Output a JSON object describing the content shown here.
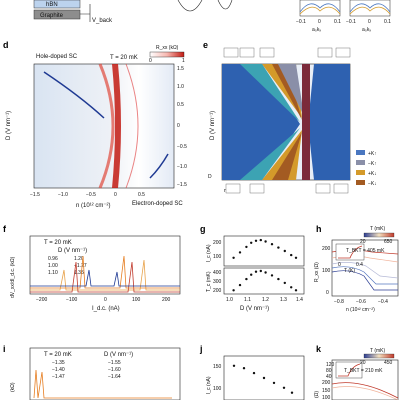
{
  "top": {
    "stack_labels": [
      "hBN",
      "Graphite"
    ],
    "vback_label": "V_back",
    "right_plots": {
      "x_ticks": [
        "−0.1",
        "0",
        "0.1"
      ],
      "x_label": "a₀kₓ"
    }
  },
  "panel_labels": {
    "d": "d",
    "e": "e",
    "f": "f",
    "g": "g",
    "h": "h",
    "i": "i",
    "j": "j",
    "k": "k"
  },
  "d": {
    "annotation_hole": "Hole-doped SC",
    "annotation_electron": "Electron-doped SC",
    "temperature": "T = 20 mK",
    "colorbar_label": "R_xx (kΩ)",
    "colorbar_ticks": [
      "0",
      "1"
    ],
    "x_label": "n (10¹² cm⁻²)",
    "x_ticks": [
      "−1.5",
      "−1.0",
      "−0.5",
      "0",
      "0.5"
    ],
    "y_label": "D (V nm⁻¹)",
    "y_ticks": [
      "1.5",
      "1.0",
      "0.5",
      "0",
      "−0.5",
      "−1.0",
      "−1.5"
    ]
  },
  "e": {
    "y_label": "D (V nm⁻¹)",
    "x_label": "n",
    "axis_D": "D",
    "legend": [
      {
        "label": "+K↑",
        "color": "#4a77c0"
      },
      {
        "label": "−K↑",
        "color": "#8a8fa8"
      },
      {
        "label": "+K↓",
        "color": "#d49a2a"
      },
      {
        "label": "−K↓",
        "color": "#a35b22"
      }
    ]
  },
  "f": {
    "temperature": "T = 20 mK",
    "legend_title": "D (V nm⁻¹)",
    "legend": [
      {
        "label": "0.96",
        "color": "#e8a24a"
      },
      {
        "label": "1.00",
        "color": "#c0392b"
      },
      {
        "label": "1.10",
        "color": "#e67e22"
      },
      {
        "label": "1.20",
        "color": "#1f3a93"
      },
      {
        "label": "−1.27",
        "color": "#7f8fa6"
      },
      {
        "label": "1.35",
        "color": "#f5c28b"
      }
    ],
    "y_label": "dV_xx/dI_d.c. (kΩ)",
    "x_label": "I_d.c. (nA)",
    "x_ticks": [
      "−200",
      "−100",
      "0",
      "100",
      "200"
    ]
  },
  "g": {
    "top_label": "I_c (nA)",
    "bottom_label": "T_c (mK)",
    "top_ticks": [
      "200",
      "100"
    ],
    "bottom_ticks": [
      "400",
      "300",
      "200"
    ],
    "x_label": "D (V nm⁻¹)",
    "x_ticks": [
      "1.0",
      "1.1",
      "1.2",
      "1.3",
      "1.4"
    ]
  },
  "h": {
    "y_label": "R_xx (Ω)",
    "y_ticks": [
      "200",
      "100",
      "0"
    ],
    "x_label": "n (10¹² cm⁻²)",
    "x_ticks": [
      "−0.8",
      "−0.6",
      "−0.4"
    ],
    "colorbar_title": "T (mK)",
    "colorbar_min": "20",
    "colorbar_max": "650",
    "inset_annot": "T_BKT = 405 mK",
    "inset_x_ticks": [
      "0",
      "0.4"
    ],
    "inset_x_label": "T (K)"
  },
  "i": {
    "temperature": "T = 20 mK",
    "legend_title": "D (V nm⁻¹)",
    "legend": [
      {
        "label": "−1.35",
        "color": "#e67e22"
      },
      {
        "label": "−1.55",
        "color": "#1f3a93"
      },
      {
        "label": "−1.40",
        "color": "#c0392b"
      },
      {
        "label": "−1.60",
        "color": "#7f8fa6"
      },
      {
        "label": "−1.47",
        "color": "#e8a24a"
      },
      {
        "label": "−1.64",
        "color": "#5b6c8a"
      }
    ],
    "y_label": "(kΩ)"
  },
  "j": {
    "y_label": "I_c (nA)",
    "y_ticks": [
      "150",
      "100"
    ]
  },
  "k": {
    "colorbar_title": "T (mK)",
    "colorbar_min": "20",
    "colorbar_max": "450",
    "y_ticks": [
      "200",
      "150",
      "100"
    ],
    "inset_annot": "T_BKT = 210 mK",
    "inset_y_ticks": [
      "120",
      "80",
      "40"
    ],
    "y_label": "(Ω)"
  },
  "chart_data": [
    {
      "type": "scatter",
      "panel": "g-top",
      "xlabel": "D (V nm⁻¹)",
      "ylabel": "I_c (nA)",
      "x": [
        0.96,
        1.0,
        1.04,
        1.07,
        1.1,
        1.13,
        1.16,
        1.2,
        1.24,
        1.28,
        1.32,
        1.35
      ],
      "y": [
        60,
        100,
        140,
        170,
        185,
        190,
        180,
        160,
        135,
        110,
        80,
        60
      ]
    },
    {
      "type": "scatter",
      "panel": "g-bottom",
      "xlabel": "D (V nm⁻¹)",
      "ylabel": "T_c (mK)",
      "x": [
        0.96,
        1.0,
        1.04,
        1.07,
        1.1,
        1.13,
        1.16,
        1.2,
        1.24,
        1.28,
        1.32,
        1.35
      ],
      "y": [
        150,
        220,
        300,
        360,
        400,
        410,
        390,
        350,
        300,
        250,
        190,
        150
      ]
    },
    {
      "type": "scatter",
      "panel": "j",
      "ylabel": "I_c (nA)",
      "x": [
        -1.35,
        -1.4,
        -1.45,
        -1.5,
        -1.55,
        -1.6,
        -1.64
      ],
      "y": [
        150,
        145,
        135,
        125,
        115,
        105,
        95
      ]
    }
  ]
}
